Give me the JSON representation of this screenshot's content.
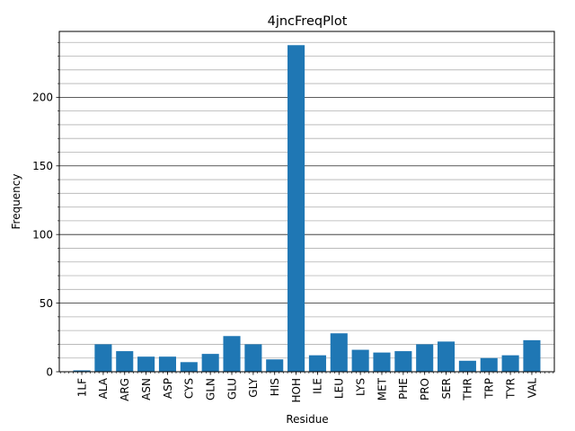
{
  "chart_data": {
    "type": "bar",
    "title": "4jncFreqPlot",
    "xlabel": "Residue",
    "ylabel": "Frequency",
    "categories": [
      "1LF",
      "ALA",
      "ARG",
      "ASN",
      "ASP",
      "CYS",
      "GLN",
      "GLU",
      "GLY",
      "HIS",
      "HOH",
      "ILE",
      "LEU",
      "LYS",
      "MET",
      "PHE",
      "PRO",
      "SER",
      "THR",
      "TRP",
      "TYR",
      "VAL"
    ],
    "values": [
      1,
      20,
      15,
      11,
      11,
      7,
      13,
      26,
      20,
      9,
      238,
      12,
      28,
      16,
      14,
      15,
      20,
      22,
      8,
      10,
      12,
      23
    ],
    "ylim": [
      0,
      248
    ],
    "yticks": [
      0,
      50,
      100,
      150,
      200
    ],
    "grid": true,
    "bar_color": "#1f77b4"
  }
}
